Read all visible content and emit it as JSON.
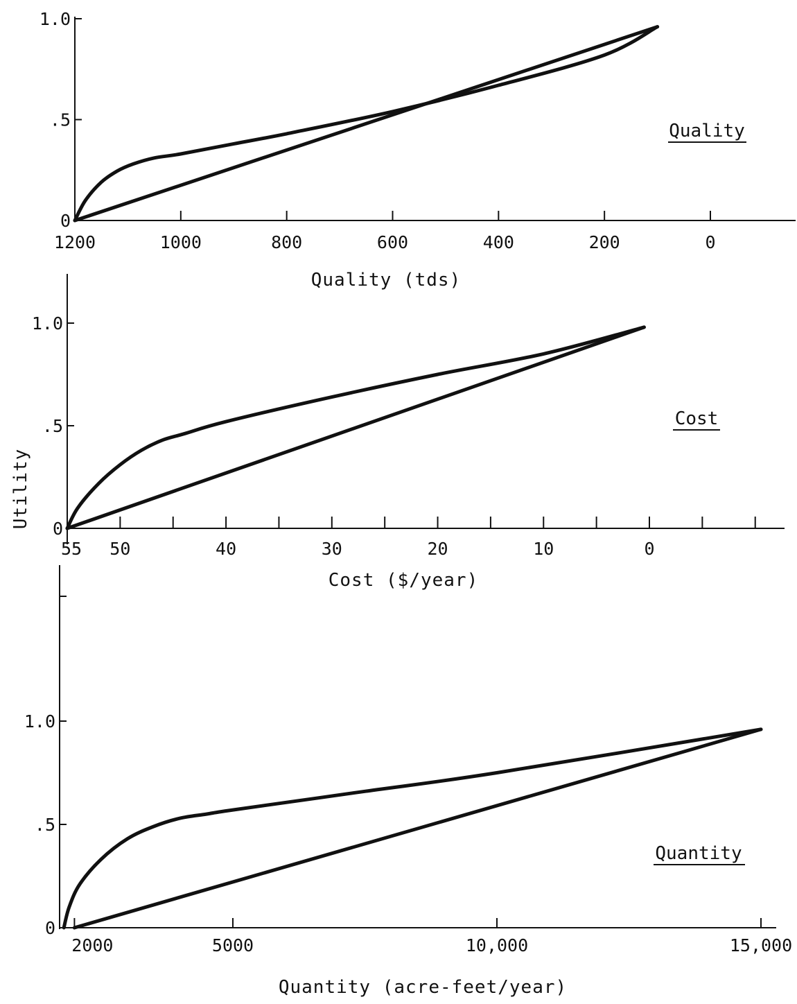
{
  "ylabel": "Utility",
  "chart_data": [
    {
      "type": "line",
      "panel_label": "Quality",
      "xlabel": "Quality (tds)",
      "ylabel": "",
      "xlim": [
        1200,
        -150
      ],
      "ylim": [
        0,
        1.0
      ],
      "xtick_marks": [
        1200,
        1000,
        800,
        600,
        400,
        200,
        0
      ],
      "xticks": [
        "1200",
        "1000",
        "800",
        "600",
        "400",
        "200",
        "0"
      ],
      "yticks": [
        0,
        0.5,
        1.0
      ],
      "ytick_labels": [
        "0",
        ".5",
        "1.0"
      ],
      "series": [
        {
          "x": [
            1200,
            1180,
            1150,
            1120,
            1090,
            1050,
            1000,
            900,
            800,
            600,
            400,
            200,
            100
          ],
          "y": [
            0,
            0.1,
            0.19,
            0.245,
            0.28,
            0.31,
            0.33,
            0.38,
            0.43,
            0.54,
            0.67,
            0.82,
            0.96
          ]
        },
        {
          "x": [
            1200,
            100
          ],
          "y": [
            0,
            0.96
          ]
        }
      ]
    },
    {
      "type": "line",
      "panel_label": "Cost",
      "xlabel": "Cost ($/year)",
      "ylabel": "",
      "xlim": [
        55,
        -11
      ],
      "ylim": [
        0,
        1.0
      ],
      "xtick_marks": [
        55,
        50,
        45,
        40,
        35,
        30,
        25,
        20,
        15,
        10,
        5,
        0,
        -5,
        -10
      ],
      "xticks": [
        "55",
        "50",
        "",
        "40",
        "",
        "30",
        "",
        "20",
        "",
        "10",
        "",
        "0",
        "",
        ""
      ],
      "yticks": [
        0,
        0.5,
        1.0
      ],
      "ytick_labels": [
        "0",
        ".5",
        "1.0"
      ],
      "series": [
        {
          "x": [
            55,
            54,
            52,
            50,
            48,
            46,
            44,
            40,
            30,
            20,
            10,
            0.5
          ],
          "y": [
            0,
            0.1,
            0.22,
            0.31,
            0.38,
            0.43,
            0.46,
            0.52,
            0.64,
            0.75,
            0.85,
            0.98
          ]
        },
        {
          "x": [
            55,
            0.5
          ],
          "y": [
            0,
            0.98
          ]
        }
      ]
    },
    {
      "type": "line",
      "panel_label": "Quantity",
      "xlabel": "Quantity (acre-feet/year)",
      "ylabel": "",
      "xlim": [
        1800,
        15500
      ],
      "ylim": [
        0,
        1.0
      ],
      "xtick_marks": [
        2000,
        5000,
        10000,
        15000
      ],
      "xticks": [
        "2000",
        "5000",
        "10,000",
        "15,000"
      ],
      "yticks": [
        0,
        0.5,
        1.0
      ],
      "ytick_labels": [
        "0",
        ".5",
        "1.0"
      ],
      "series": [
        {
          "x": [
            1800,
            1900,
            2100,
            2500,
            3000,
            3500,
            4000,
            4500,
            5000,
            7500,
            10000,
            15000
          ],
          "y": [
            0,
            0.1,
            0.21,
            0.33,
            0.43,
            0.49,
            0.53,
            0.55,
            0.57,
            0.66,
            0.75,
            0.96
          ]
        },
        {
          "x": [
            2000,
            15000
          ],
          "y": [
            0,
            0.96
          ]
        }
      ]
    }
  ]
}
